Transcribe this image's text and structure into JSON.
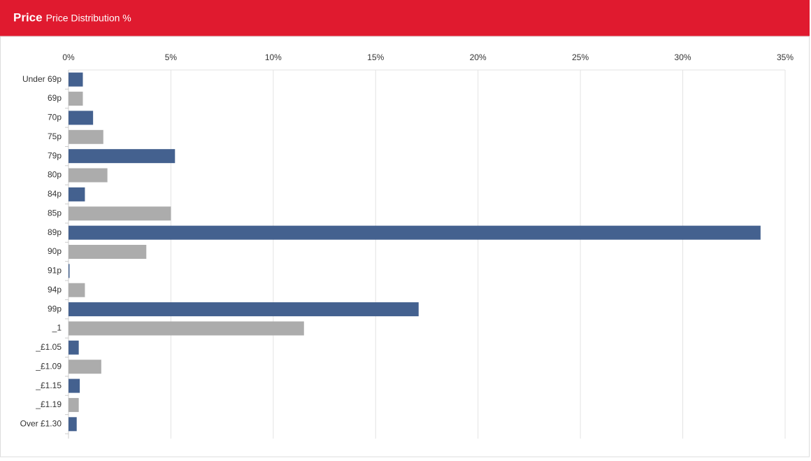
{
  "chart_data": {
    "type": "bar",
    "orientation": "horizontal",
    "title": "Price",
    "subtitle": "Price Distribution %",
    "categories": [
      "Under 69p",
      "69p",
      "70p",
      "75p",
      "79p",
      "80p",
      "84p",
      "85p",
      "89p",
      "90p",
      "91p",
      "94p",
      "99p",
      "_1",
      "_£1.05",
      "_£1.09",
      "_£1.15",
      "_£1.19",
      "Over £1.30"
    ],
    "values": [
      0.7,
      0.7,
      1.2,
      1.7,
      5.2,
      1.9,
      0.8,
      5.0,
      33.8,
      3.8,
      0.05,
      0.8,
      17.1,
      11.5,
      0.5,
      1.6,
      0.55,
      0.5,
      0.4
    ],
    "colors": [
      "#44618f",
      "#acacac"
    ],
    "xlim": [
      0,
      35
    ],
    "xticks": [
      {
        "value": 0,
        "label": "0%"
      },
      {
        "value": 5,
        "label": "5%"
      },
      {
        "value": 10,
        "label": "10%"
      },
      {
        "value": 15,
        "label": "15%"
      },
      {
        "value": 20,
        "label": "20%"
      },
      {
        "value": 25,
        "label": "25%"
      },
      {
        "value": 30,
        "label": "30%"
      },
      {
        "value": 35,
        "label": "35%"
      }
    ],
    "grid": true
  }
}
